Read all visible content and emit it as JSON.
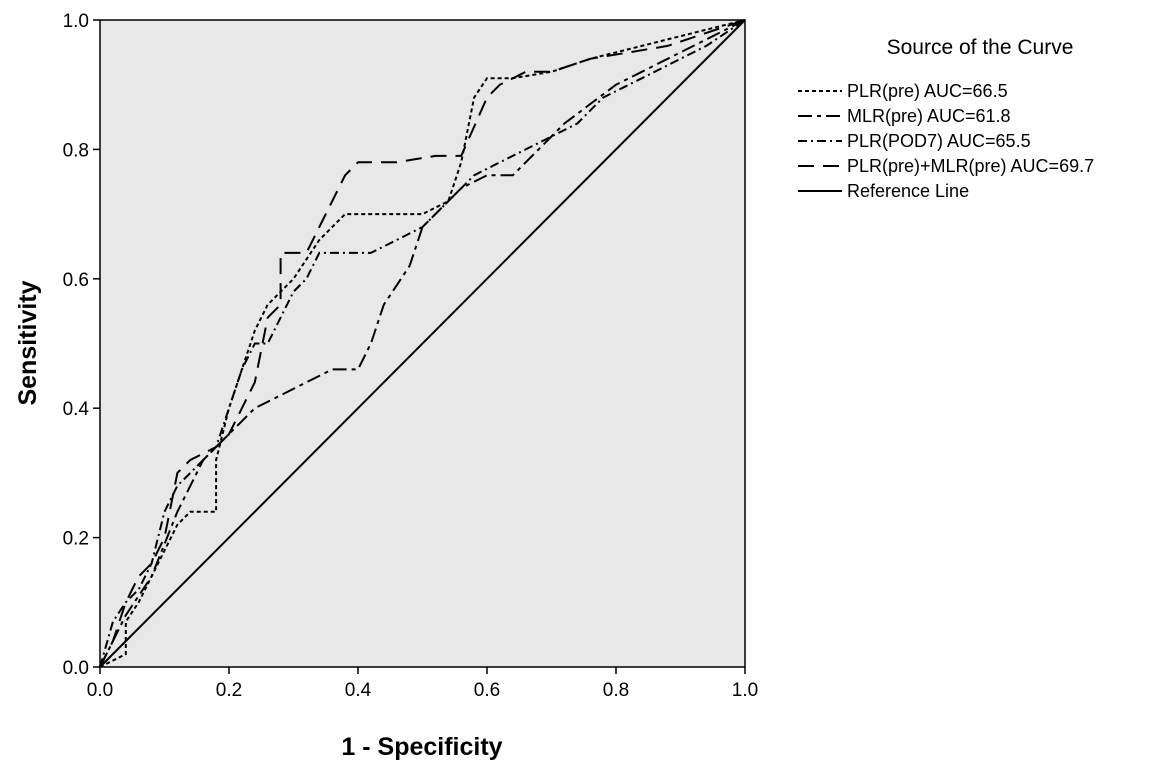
{
  "chart_data": {
    "type": "line",
    "title": "",
    "xlabel": "1 - Specificity",
    "ylabel": "Sensitivity",
    "xlim": [
      0,
      1
    ],
    "ylim": [
      0,
      1
    ],
    "xticks": [
      "0.0",
      "0.2",
      "0.4",
      "0.6",
      "0.8",
      "1.0"
    ],
    "yticks": [
      "0.0",
      "0.2",
      "0.4",
      "0.6",
      "0.8",
      "1.0"
    ],
    "grid": false,
    "legend": {
      "title": "Source of the Curve",
      "placement": "right"
    },
    "background_color": "#e8e8e8",
    "series": [
      {
        "name": "PLR(pre)  AUC=66.5",
        "dash": "short-dash",
        "x": [
          0,
          0.04,
          0.04,
          0.06,
          0.08,
          0.1,
          0.12,
          0.14,
          0.16,
          0.18,
          0.18,
          0.2,
          0.22,
          0.24,
          0.26,
          0.3,
          0.34,
          0.38,
          0.44,
          0.5,
          0.54,
          0.56,
          0.58,
          0.6,
          0.64,
          0.7,
          0.76,
          0.84,
          0.92,
          1.0
        ],
        "y": [
          0,
          0.02,
          0.07,
          0.1,
          0.14,
          0.18,
          0.22,
          0.24,
          0.24,
          0.24,
          0.32,
          0.4,
          0.46,
          0.52,
          0.56,
          0.6,
          0.66,
          0.7,
          0.7,
          0.7,
          0.72,
          0.78,
          0.88,
          0.91,
          0.91,
          0.92,
          0.94,
          0.96,
          0.98,
          1.0
        ]
      },
      {
        "name": "MLR(pre)  AUC=61.8",
        "dash": "long-short",
        "x": [
          0,
          0.04,
          0.08,
          0.12,
          0.16,
          0.2,
          0.24,
          0.28,
          0.32,
          0.36,
          0.4,
          0.42,
          0.44,
          0.46,
          0.48,
          0.5,
          0.52,
          0.56,
          0.6,
          0.64,
          0.68,
          0.72,
          0.76,
          0.8,
          0.84,
          0.88,
          0.92,
          0.96,
          1.0
        ],
        "y": [
          0,
          0.08,
          0.14,
          0.24,
          0.32,
          0.36,
          0.4,
          0.42,
          0.44,
          0.46,
          0.46,
          0.5,
          0.56,
          0.59,
          0.62,
          0.68,
          0.7,
          0.74,
          0.76,
          0.76,
          0.8,
          0.84,
          0.87,
          0.9,
          0.92,
          0.94,
          0.96,
          0.98,
          1.0
        ]
      },
      {
        "name": "PLR(POD7) AUC=65.5",
        "dash": "dash-dot",
        "x": [
          0,
          0.02,
          0.04,
          0.06,
          0.08,
          0.1,
          0.12,
          0.14,
          0.16,
          0.18,
          0.2,
          0.22,
          0.24,
          0.26,
          0.28,
          0.3,
          0.32,
          0.34,
          0.38,
          0.42,
          0.46,
          0.5,
          0.54,
          0.58,
          0.62,
          0.66,
          0.7,
          0.74,
          0.78,
          0.82,
          0.86,
          0.9,
          0.94,
          1.0
        ],
        "y": [
          0,
          0.07,
          0.1,
          0.12,
          0.16,
          0.24,
          0.28,
          0.3,
          0.32,
          0.34,
          0.4,
          0.46,
          0.5,
          0.5,
          0.54,
          0.58,
          0.6,
          0.64,
          0.64,
          0.64,
          0.66,
          0.68,
          0.72,
          0.76,
          0.78,
          0.8,
          0.82,
          0.84,
          0.88,
          0.9,
          0.92,
          0.94,
          0.96,
          1.0
        ]
      },
      {
        "name": "PLR(pre)+MLR(pre) AUC=69.7",
        "dash": "long-dash",
        "x": [
          0,
          0.02,
          0.04,
          0.06,
          0.08,
          0.1,
          0.12,
          0.14,
          0.16,
          0.18,
          0.2,
          0.22,
          0.24,
          0.26,
          0.28,
          0.28,
          0.32,
          0.36,
          0.38,
          0.4,
          0.46,
          0.52,
          0.56,
          0.6,
          0.62,
          0.66,
          0.7,
          0.76,
          0.82,
          0.88,
          0.94,
          1.0
        ],
        "y": [
          0,
          0.04,
          0.1,
          0.14,
          0.16,
          0.2,
          0.3,
          0.32,
          0.33,
          0.34,
          0.36,
          0.4,
          0.44,
          0.54,
          0.56,
          0.64,
          0.64,
          0.72,
          0.76,
          0.78,
          0.78,
          0.79,
          0.79,
          0.88,
          0.9,
          0.92,
          0.92,
          0.94,
          0.95,
          0.96,
          0.98,
          1.0
        ]
      },
      {
        "name": "Reference Line",
        "dash": "solid",
        "x": [
          0,
          1
        ],
        "y": [
          0,
          1
        ]
      }
    ]
  }
}
